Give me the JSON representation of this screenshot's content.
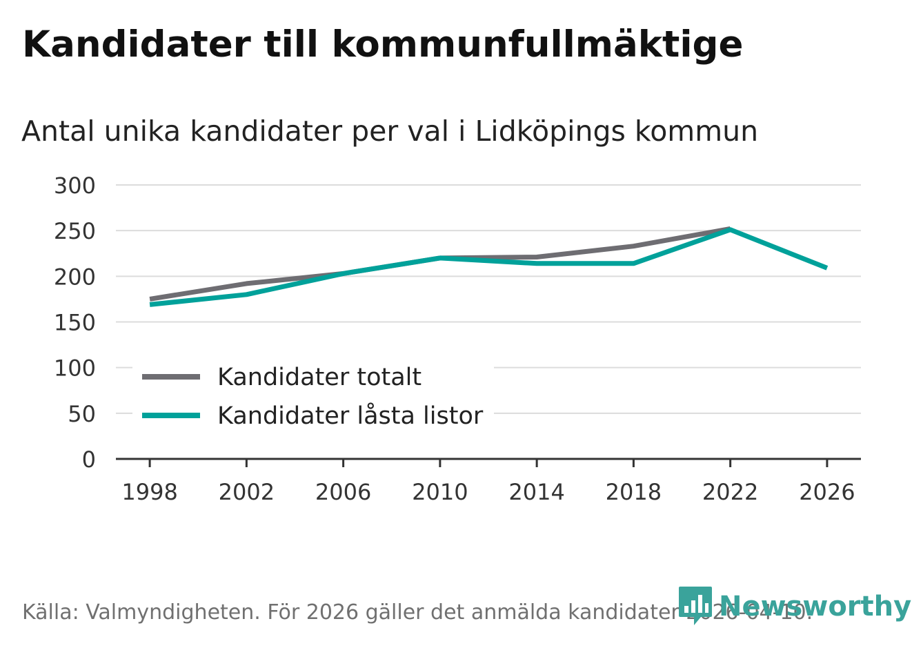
{
  "header": {
    "title": "Kandidater till kommunfullmäktige",
    "subtitle": "Antal unika kandidater per val i Lidköpings kommun"
  },
  "footer": {
    "source": "Källa: Valmyndigheten. För 2026 gäller det anmälda kandidater 2026-04-10.",
    "brand": "Newsworthy"
  },
  "colors": {
    "total": "#6e6d72",
    "locked": "#00a19a",
    "grid": "#dcdcdc",
    "axis": "#333333",
    "brand": "#3aa39b"
  },
  "chart_data": {
    "type": "line",
    "title": "Kandidater till kommunfullmäktige",
    "subtitle": "Antal unika kandidater per val i Lidköpings kommun",
    "xlabel": "",
    "ylabel": "",
    "x": [
      1998,
      2002,
      2006,
      2010,
      2014,
      2018,
      2022,
      2026
    ],
    "xlim": [
      1996.6,
      2027.4
    ],
    "ylim": [
      0,
      300
    ],
    "yticks": [
      0,
      50,
      100,
      150,
      200,
      250,
      300
    ],
    "grid": true,
    "legend_position": "bottom-left",
    "series": [
      {
        "name": "Kandidater totalt",
        "color_key": "total",
        "values": [
          175,
          192,
          203,
          220,
          221,
          233,
          252,
          null
        ]
      },
      {
        "name": "Kandidater låsta listor",
        "color_key": "locked",
        "values": [
          169,
          180,
          203,
          220,
          214,
          214,
          251,
          209
        ]
      }
    ]
  }
}
